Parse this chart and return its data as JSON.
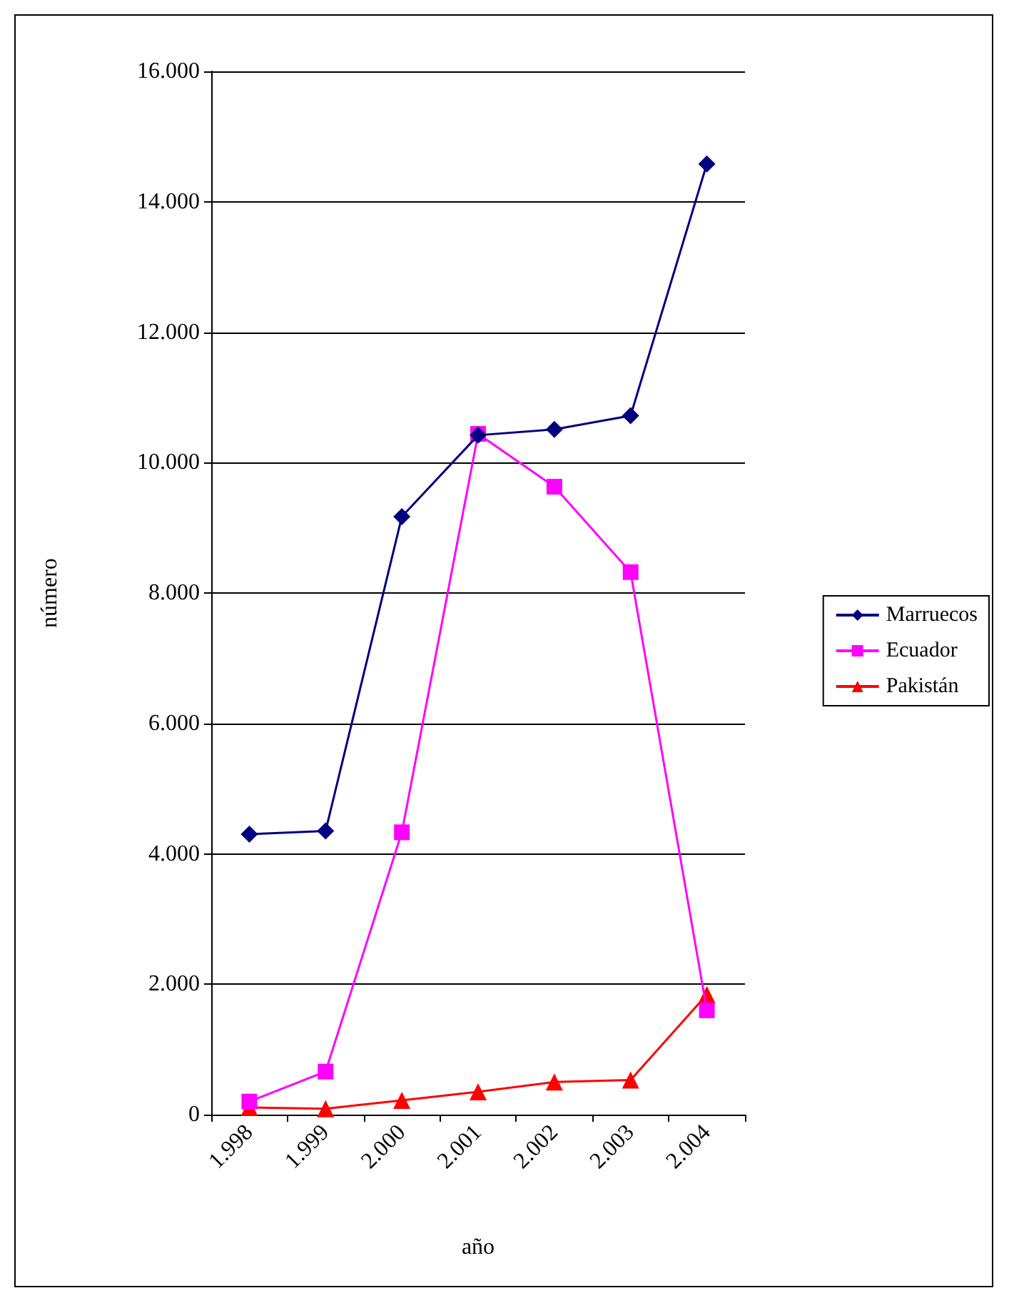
{
  "chart_data": {
    "type": "line",
    "xlabel": "año",
    "ylabel": "número",
    "categories": [
      "1.998",
      "1.999",
      "2.000",
      "2.001",
      "2.002",
      "2.003",
      "2.004"
    ],
    "series": [
      {
        "name": "Marruecos",
        "color": "#000080",
        "marker": "diamond",
        "values": [
          4300,
          4350,
          9170,
          10420,
          10510,
          10720,
          14580
        ]
      },
      {
        "name": "Ecuador",
        "color": "#ff00ff",
        "marker": "square",
        "values": [
          200,
          660,
          4330,
          10440,
          9630,
          8320,
          1600
        ]
      },
      {
        "name": "Pakistán",
        "color": "#ff0000",
        "marker": "triangle",
        "values": [
          110,
          90,
          220,
          350,
          500,
          530,
          1840
        ]
      }
    ],
    "ylim": [
      0,
      16000
    ],
    "yticks": [
      {
        "value": 0,
        "label": "0"
      },
      {
        "value": 2000,
        "label": "2.000"
      },
      {
        "value": 4000,
        "label": "4.000"
      },
      {
        "value": 6000,
        "label": "6.000"
      },
      {
        "value": 8000,
        "label": "8.000"
      },
      {
        "value": 10000,
        "label": "10.000"
      },
      {
        "value": 12000,
        "label": "12.000"
      },
      {
        "value": 14000,
        "label": "14.000"
      },
      {
        "value": 16000,
        "label": "16.000"
      }
    ],
    "grid": "y",
    "legend": "right",
    "line_style": "solid"
  }
}
